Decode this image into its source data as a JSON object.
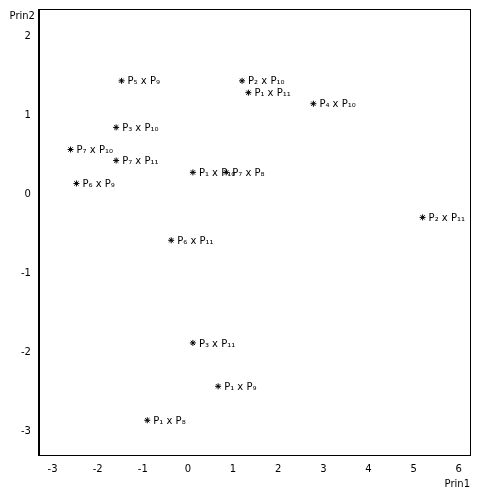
{
  "chart_data": {
    "type": "scatter",
    "xlabel": "Prin1",
    "ylabel": "Prin2",
    "xlim": [
      -3.3,
      6.25
    ],
    "ylim": [
      -3.3,
      2.35
    ],
    "xticks": [
      -3,
      -2,
      -1,
      0,
      1,
      2,
      3,
      4,
      5,
      6
    ],
    "yticks": [
      -3,
      -2,
      -1,
      0,
      1,
      2
    ],
    "grid": false,
    "marker": "star",
    "color": "#000000",
    "points": [
      {
        "label": "P₅ x P₉",
        "x": -1.47,
        "y": 1.44
      },
      {
        "label": "P₂ x P₁₀",
        "x": 1.2,
        "y": 1.44
      },
      {
        "label": "P₁ x P₁₁",
        "x": 1.34,
        "y": 1.29
      },
      {
        "label": "P₄ x P₁₀",
        "x": 2.78,
        "y": 1.15
      },
      {
        "label": "P₃ x P₁₀",
        "x": -1.59,
        "y": 0.85
      },
      {
        "label": "P₇ x P₁₀",
        "x": -2.6,
        "y": 0.57
      },
      {
        "label": "P₇ x P₁₁",
        "x": -1.59,
        "y": 0.43
      },
      {
        "label": "P₆ x P₉",
        "x": -2.47,
        "y": 0.14
      },
      {
        "label": "P₁ x P₁₀",
        "x": 0.11,
        "y": 0.28
      },
      {
        "label": "P₇ x P₈",
        "x": 0.85,
        "y": 0.28
      },
      {
        "label": "P₂ x P₁₁",
        "x": 5.2,
        "y": -0.29
      },
      {
        "label": "P₆ x P₁₁",
        "x": -0.37,
        "y": -0.58
      },
      {
        "label": "P₃ x P₁₁",
        "x": 0.11,
        "y": -1.88
      },
      {
        "label": "P₁ x P₉",
        "x": 0.67,
        "y": -2.43
      },
      {
        "label": "P₁ x P₈",
        "x": -0.9,
        "y": -2.86
      }
    ]
  }
}
